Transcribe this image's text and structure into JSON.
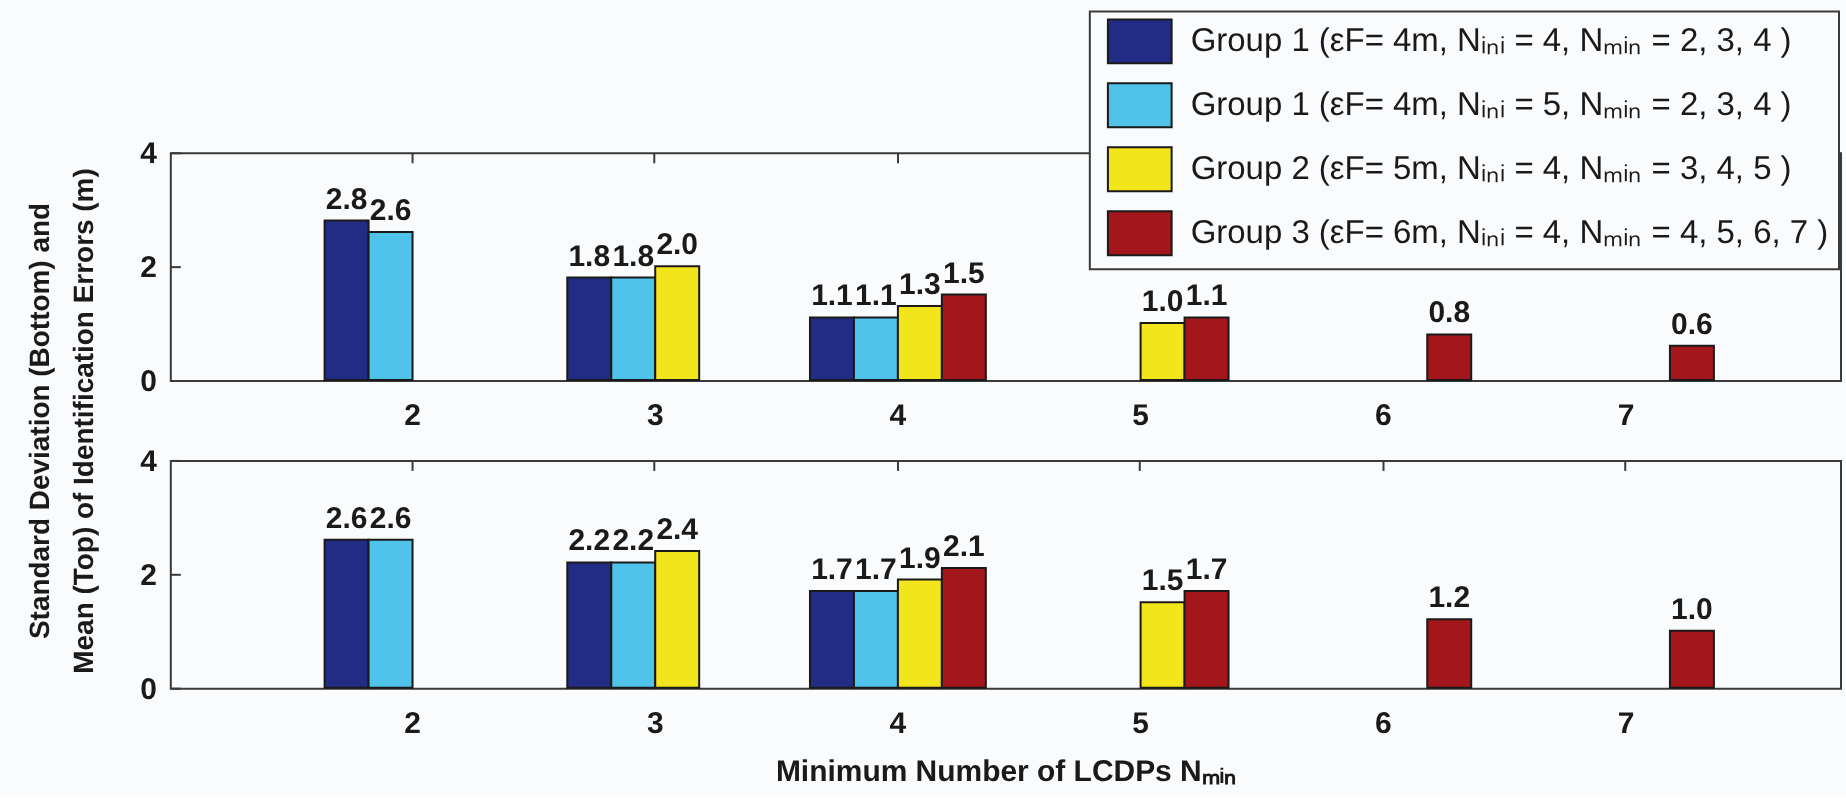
{
  "chart_data": [
    {
      "type": "bar",
      "categories": [
        "2",
        "3",
        "4",
        "5",
        "6",
        "7"
      ],
      "ylabel": "Standard Deviation (Bottom) and Mean (Top) of Identification Errors (m)",
      "ylim": [
        0,
        4
      ],
      "yticks": [
        0,
        2,
        4
      ],
      "legend": "top right",
      "series": [
        {
          "name": "Group 1 (εF= 4m, Nᵢₙᵢ = 4, Nₘᵢₙ = 2, 3, 4 )",
          "color": "#232c84",
          "values": [
            2.8,
            1.8,
            1.1,
            null,
            null,
            null
          ],
          "value_labels": [
            "2.8",
            "1.8",
            "1.1",
            null,
            null,
            null
          ]
        },
        {
          "name": "Group 1 (εF= 4m, Nᵢₙᵢ = 5, Nₘᵢₙ = 2, 3, 4 )",
          "color": "#4fc3ea",
          "values": [
            2.6,
            1.8,
            1.1,
            null,
            null,
            null
          ],
          "value_labels": [
            "2.6",
            "1.8",
            "1.1",
            null,
            null,
            null
          ]
        },
        {
          "name": "Group 2 (εF= 5m, Nᵢₙᵢ = 4, Nₘᵢₙ = 3, 4, 5 )",
          "color": "#f2e51b",
          "values": [
            null,
            2.0,
            1.3,
            1.0,
            null,
            null
          ],
          "value_labels": [
            null,
            "2.0",
            "1.3",
            "1.0",
            null,
            null
          ]
        },
        {
          "name": "Group 3 (εF= 6m, Nᵢₙᵢ = 4, Nₘᵢₙ = 4, 5, 6, 7 )",
          "color": "#a3171c",
          "values": [
            null,
            null,
            1.5,
            1.1,
            0.8,
            0.6
          ],
          "value_labels": [
            null,
            null,
            "1.5",
            "1.1",
            "0.8",
            "0.6"
          ]
        }
      ]
    },
    {
      "type": "bar",
      "categories": [
        "2",
        "3",
        "4",
        "5",
        "6",
        "7"
      ],
      "xlabel": "Minimum Number of LCDPs Nₘᵢₙ",
      "ylim": [
        0,
        4
      ],
      "yticks": [
        0,
        2,
        4
      ],
      "series": [
        {
          "color": "#232c84",
          "values": [
            2.6,
            2.2,
            1.7,
            null,
            null,
            null
          ],
          "value_labels": [
            "2.6",
            "2.2",
            "1.7",
            null,
            null,
            null
          ]
        },
        {
          "color": "#4fc3ea",
          "values": [
            2.6,
            2.2,
            1.7,
            null,
            null,
            null
          ],
          "value_labels": [
            "2.6",
            "2.2",
            "1.7",
            null,
            null,
            null
          ]
        },
        {
          "color": "#f2e51b",
          "values": [
            null,
            2.4,
            1.9,
            1.5,
            null,
            null
          ],
          "value_labels": [
            null,
            "2.4",
            "1.9",
            "1.5",
            null,
            null
          ]
        },
        {
          "color": "#a3171c",
          "values": [
            null,
            null,
            2.1,
            1.7,
            1.2,
            1.0
          ],
          "value_labels": [
            null,
            null,
            "2.1",
            "1.7",
            "1.2",
            "1.0"
          ]
        }
      ]
    }
  ]
}
